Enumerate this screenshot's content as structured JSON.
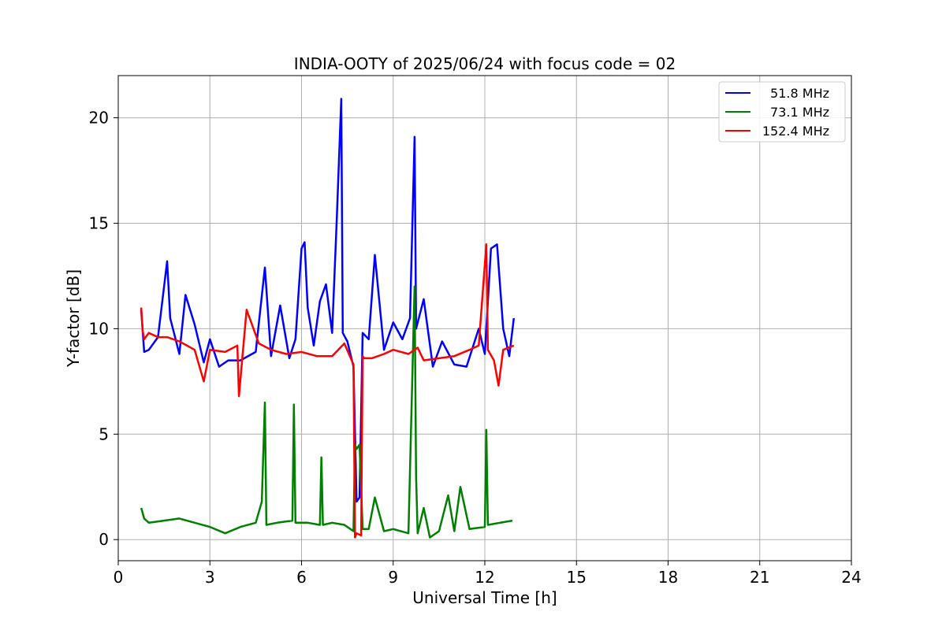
{
  "chart_data": {
    "type": "line",
    "title": "INDIA-OOTY of 2025/06/24 with focus code = 02",
    "xlabel": "Universal Time [h]",
    "ylabel": "Y-factor [dB]",
    "xlim": [
      0,
      24
    ],
    "ylim": [
      -1,
      22
    ],
    "xticks": [
      0,
      3,
      6,
      9,
      12,
      15,
      18,
      21,
      24
    ],
    "yticks": [
      0,
      5,
      10,
      15,
      20
    ],
    "grid": true,
    "legend_position": "top-right",
    "series": [
      {
        "name": "51.8 MHz",
        "color": "#0000ff",
        "x": [
          0.75,
          0.85,
          1.0,
          1.3,
          1.6,
          1.7,
          2.0,
          2.2,
          2.5,
          2.8,
          3.0,
          3.3,
          3.6,
          4.0,
          4.5,
          4.8,
          5.0,
          5.3,
          5.6,
          5.8,
          6.0,
          6.1,
          6.2,
          6.4,
          6.6,
          6.8,
          7.0,
          7.15,
          7.3,
          7.35,
          7.5,
          7.7,
          7.8,
          7.9,
          8.0,
          8.2,
          8.4,
          8.7,
          9.0,
          9.3,
          9.55,
          9.7,
          9.75,
          10.0,
          10.3,
          10.6,
          11.0,
          11.4,
          11.8,
          12.0,
          12.2,
          12.4,
          12.6,
          12.8,
          12.95
        ],
        "y": [
          10.9,
          8.9,
          9.0,
          9.6,
          13.2,
          10.5,
          8.8,
          11.6,
          10.2,
          8.4,
          9.5,
          8.2,
          8.5,
          8.5,
          8.9,
          12.9,
          8.7,
          11.1,
          8.6,
          9.5,
          13.8,
          14.1,
          11.0,
          9.2,
          11.3,
          12.1,
          9.8,
          15.1,
          20.9,
          9.8,
          9.4,
          8.2,
          1.8,
          2.0,
          9.8,
          9.5,
          13.5,
          9.0,
          10.3,
          9.5,
          10.5,
          19.1,
          10.0,
          11.4,
          8.2,
          9.4,
          8.3,
          8.2,
          10.0,
          8.8,
          13.8,
          14.0,
          10.0,
          8.7,
          10.5
        ]
      },
      {
        "name": "73.1 MHz",
        "color": "#008000",
        "x": [
          0.75,
          0.85,
          1.0,
          1.5,
          2.0,
          2.5,
          3.0,
          3.5,
          4.0,
          4.5,
          4.7,
          4.8,
          4.85,
          5.2,
          5.7,
          5.75,
          5.8,
          6.2,
          6.6,
          6.65,
          6.7,
          7.0,
          7.4,
          7.7,
          7.75,
          7.8,
          7.9,
          8.0,
          8.2,
          8.4,
          8.7,
          9.0,
          9.5,
          9.7,
          9.75,
          9.8,
          10.0,
          10.2,
          10.5,
          10.8,
          11.0,
          11.2,
          11.5,
          12.0,
          12.05,
          12.1,
          12.5,
          12.9
        ],
        "y": [
          1.5,
          1.0,
          0.8,
          0.9,
          1.0,
          0.8,
          0.6,
          0.3,
          0.6,
          0.8,
          1.8,
          6.5,
          0.7,
          0.8,
          0.9,
          6.4,
          0.8,
          0.8,
          0.7,
          3.9,
          0.7,
          0.8,
          0.7,
          0.4,
          4.5,
          4.3,
          4.5,
          0.5,
          0.5,
          2.0,
          0.4,
          0.5,
          0.3,
          12.0,
          3.0,
          0.3,
          1.5,
          0.1,
          0.4,
          2.1,
          0.4,
          2.5,
          0.5,
          0.6,
          5.2,
          0.7,
          0.8,
          0.9
        ]
      },
      {
        "name": "152.4 MHz",
        "color": "#ff0000",
        "x": [
          0.75,
          0.8,
          0.85,
          1.0,
          1.3,
          1.6,
          2.0,
          2.5,
          2.8,
          3.0,
          3.5,
          3.9,
          3.95,
          4.2,
          4.6,
          5.0,
          5.5,
          6.0,
          6.5,
          7.0,
          7.4,
          7.7,
          7.75,
          7.8,
          7.95,
          8.0,
          8.05,
          8.3,
          8.7,
          9.0,
          9.5,
          9.8,
          10.0,
          10.5,
          11.0,
          11.5,
          11.8,
          12.05,
          12.1,
          12.3,
          12.45,
          12.6,
          12.95
        ],
        "y": [
          11.0,
          9.9,
          9.5,
          9.8,
          9.6,
          9.6,
          9.4,
          9.0,
          7.5,
          9.0,
          8.9,
          9.2,
          6.8,
          10.9,
          9.3,
          9.0,
          8.8,
          8.9,
          8.7,
          8.7,
          9.3,
          8.3,
          0.1,
          0.3,
          0.2,
          8.7,
          8.6,
          8.6,
          8.8,
          9.0,
          8.8,
          9.1,
          8.5,
          8.6,
          8.7,
          9.0,
          9.2,
          14.0,
          9.0,
          8.5,
          7.3,
          9.0,
          9.2
        ]
      }
    ]
  }
}
